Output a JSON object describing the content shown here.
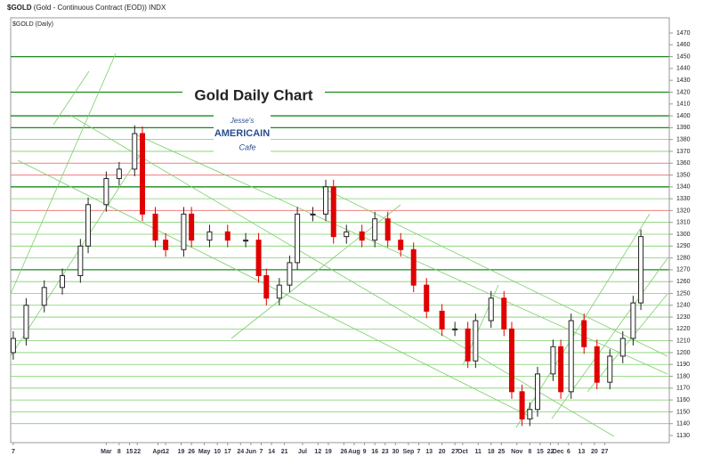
{
  "header": {
    "symbol": "$GOLD",
    "description": "(Gold - Continuous Contract (EOD)) INDX",
    "legend": "$GOLD (Daily)"
  },
  "logo": {
    "line1": "Jesse's",
    "line2": "AMERICAIN",
    "line3": "Cafe"
  },
  "chart_data": {
    "type": "candlestick",
    "title": "Gold Daily Chart",
    "x": [
      1,
      6,
      13,
      20,
      27,
      30,
      37,
      42,
      48,
      51,
      56,
      60,
      67,
      70,
      77,
      84,
      91,
      96,
      99,
      104,
      108,
      111,
      117,
      122,
      125,
      130,
      136,
      141,
      146,
      151,
      156,
      161,
      167,
      172,
      177,
      180,
      186,
      191,
      194,
      198,
      201,
      204,
      210,
      213,
      217,
      222,
      227,
      232,
      237,
      241,
      244
    ],
    "open": [
      1200,
      1212,
      1240,
      1255,
      1265,
      1290,
      1325,
      1347,
      1355,
      1385,
      1317,
      1295,
      1287,
      1317,
      1295,
      1302,
      1295,
      1295,
      1265,
      1246,
      1257,
      1276,
      1317,
      1317,
      1340,
      1298,
      1302,
      1295,
      1313,
      1295,
      1287,
      1257,
      1235,
      1220,
      1220,
      1193,
      1227,
      1246,
      1220,
      1167,
      1144,
      1152,
      1182,
      1205,
      1167,
      1227,
      1205,
      1175,
      1197,
      1212,
      1242
    ],
    "high": [
      1218,
      1246,
      1261,
      1271,
      1296,
      1331,
      1353,
      1361,
      1392,
      1391,
      1323,
      1301,
      1323,
      1323,
      1308,
      1308,
      1301,
      1301,
      1271,
      1263,
      1282,
      1323,
      1323,
      1346,
      1346,
      1308,
      1308,
      1319,
      1319,
      1301,
      1293,
      1263,
      1241,
      1226,
      1226,
      1233,
      1252,
      1252,
      1226,
      1173,
      1158,
      1188,
      1211,
      1211,
      1233,
      1233,
      1211,
      1203,
      1218,
      1248,
      1304
    ],
    "low": [
      1194,
      1206,
      1234,
      1249,
      1259,
      1284,
      1319,
      1341,
      1349,
      1311,
      1289,
      1281,
      1281,
      1289,
      1289,
      1289,
      1289,
      1259,
      1240,
      1240,
      1251,
      1270,
      1311,
      1311,
      1292,
      1292,
      1289,
      1289,
      1289,
      1281,
      1251,
      1229,
      1214,
      1214,
      1187,
      1187,
      1221,
      1214,
      1161,
      1138,
      1138,
      1146,
      1176,
      1161,
      1161,
      1199,
      1169,
      1169,
      1191,
      1206,
      1236
    ],
    "close": [
      1212,
      1240,
      1255,
      1265,
      1290,
      1325,
      1347,
      1355,
      1385,
      1317,
      1295,
      1287,
      1317,
      1295,
      1302,
      1295,
      1295,
      1265,
      1246,
      1257,
      1276,
      1317,
      1317,
      1340,
      1298,
      1302,
      1295,
      1313,
      1295,
      1287,
      1257,
      1235,
      1220,
      1220,
      1193,
      1227,
      1246,
      1220,
      1167,
      1144,
      1152,
      1182,
      1205,
      1167,
      1227,
      1205,
      1175,
      1197,
      1212,
      1242,
      1298
    ],
    "up_color": "#222222",
    "down_color": "#e00000",
    "support_levels": [
      1140,
      1150,
      1160,
      1170,
      1180,
      1190,
      1200,
      1210,
      1220,
      1230,
      1240,
      1250,
      1260,
      1280,
      1290,
      1300,
      1310,
      1330,
      1370,
      1380
    ],
    "key_levels": [
      1270,
      1340,
      1390,
      1400,
      1420,
      1450
    ],
    "resistance_levels": [
      1320,
      1350,
      1360
    ],
    "support_color": "#7ccf6a",
    "key_color": "#1a8a1a",
    "resistance_color": "#f08080",
    "xlim": [
      0,
      255
    ],
    "ylim": [
      1130,
      1470
    ],
    "yticks": [
      1130,
      1140,
      1150,
      1160,
      1170,
      1180,
      1190,
      1200,
      1210,
      1220,
      1230,
      1240,
      1250,
      1260,
      1270,
      1280,
      1290,
      1300,
      1310,
      1320,
      1330,
      1340,
      1350,
      1360,
      1370,
      1380,
      1390,
      1400,
      1410,
      1420,
      1430,
      1440,
      1450,
      1460,
      1470
    ],
    "xticks": [
      {
        "value": 1,
        "label": "7"
      },
      {
        "value": 37,
        "label": "Mar"
      },
      {
        "value": 42,
        "label": "8"
      },
      {
        "value": 46,
        "label": "15"
      },
      {
        "value": 49,
        "label": "22"
      },
      {
        "value": 57,
        "label": "Apr"
      },
      {
        "value": 60,
        "label": "12"
      },
      {
        "value": 66,
        "label": "19"
      },
      {
        "value": 70,
        "label": "26"
      },
      {
        "value": 75,
        "label": "May"
      },
      {
        "value": 80,
        "label": "10"
      },
      {
        "value": 84,
        "label": "17"
      },
      {
        "value": 89,
        "label": "24"
      },
      {
        "value": 93,
        "label": "Jun"
      },
      {
        "value": 97,
        "label": "7"
      },
      {
        "value": 101,
        "label": "14"
      },
      {
        "value": 106,
        "label": "21"
      },
      {
        "value": 113,
        "label": "Jul"
      },
      {
        "value": 119,
        "label": "12"
      },
      {
        "value": 123,
        "label": "19"
      },
      {
        "value": 129,
        "label": "26"
      },
      {
        "value": 133,
        "label": "Aug"
      },
      {
        "value": 137,
        "label": "9"
      },
      {
        "value": 141,
        "label": "16"
      },
      {
        "value": 145,
        "label": "23"
      },
      {
        "value": 149,
        "label": "30"
      },
      {
        "value": 154,
        "label": "Sep"
      },
      {
        "value": 158,
        "label": "7"
      },
      {
        "value": 162,
        "label": "13"
      },
      {
        "value": 167,
        "label": "20"
      },
      {
        "value": 172,
        "label": "27"
      },
      {
        "value": 175,
        "label": "Oct"
      },
      {
        "value": 181,
        "label": "11"
      },
      {
        "value": 186,
        "label": "18"
      },
      {
        "value": 190,
        "label": "25"
      },
      {
        "value": 196,
        "label": "Nov"
      },
      {
        "value": 201,
        "label": "8"
      },
      {
        "value": 205,
        "label": "15"
      },
      {
        "value": 209,
        "label": "22"
      },
      {
        "value": 212,
        "label": "Dec"
      },
      {
        "value": 216,
        "label": "6"
      },
      {
        "value": 221,
        "label": "13"
      },
      {
        "value": 226,
        "label": "20"
      },
      {
        "value": 230,
        "label": "27"
      }
    ]
  }
}
